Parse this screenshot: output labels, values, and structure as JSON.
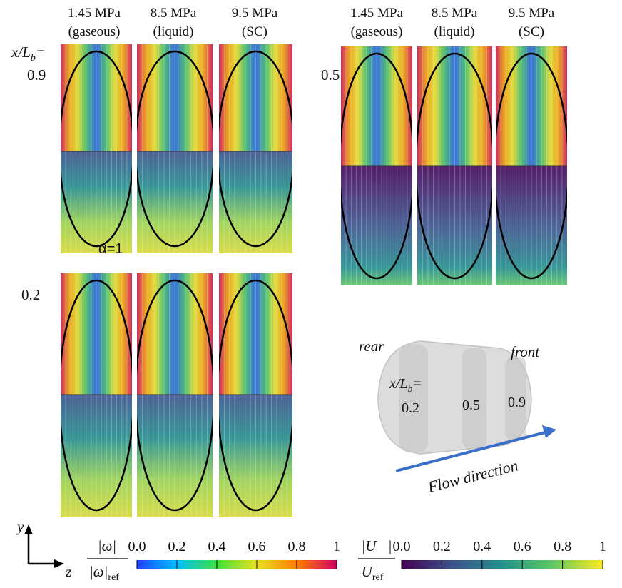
{
  "column_headers": [
    {
      "pressure": "1.45 MPa",
      "phase": "(gaseous)"
    },
    {
      "pressure": "8.5 MPa",
      "phase": "(liquid)"
    },
    {
      "pressure": "9.5 MPa",
      "phase": "(SC)"
    }
  ],
  "position_label": {
    "main": "x/L",
    "subscript": "b",
    "suffix": "="
  },
  "panels": [
    {
      "position": "0.9"
    },
    {
      "position": "0.5"
    },
    {
      "position": "0.2"
    }
  ],
  "annotation": "α=1",
  "schematic": {
    "rear": "rear",
    "front": "front",
    "position_label": {
      "main": "x/L",
      "subscript": "b",
      "suffix": "="
    },
    "positions": [
      "0.2",
      "0.5",
      "0.9"
    ],
    "flow_direction": "Flow direction"
  },
  "axes": {
    "y": "y",
    "z": "z"
  },
  "colorbars": [
    {
      "numerator": "|ω|",
      "denominator": "|ω|",
      "denominator_subscript": "ref",
      "ticks": [
        "0.0",
        "0.2",
        "0.4",
        "0.6",
        "0.8",
        "1"
      ]
    },
    {
      "numerator": "|U⃗|",
      "denominator": "U",
      "denominator_subscript": "ref",
      "ticks": [
        "0.0",
        "0.2",
        "0.4",
        "0.6",
        "0.8",
        "1"
      ]
    }
  ]
}
